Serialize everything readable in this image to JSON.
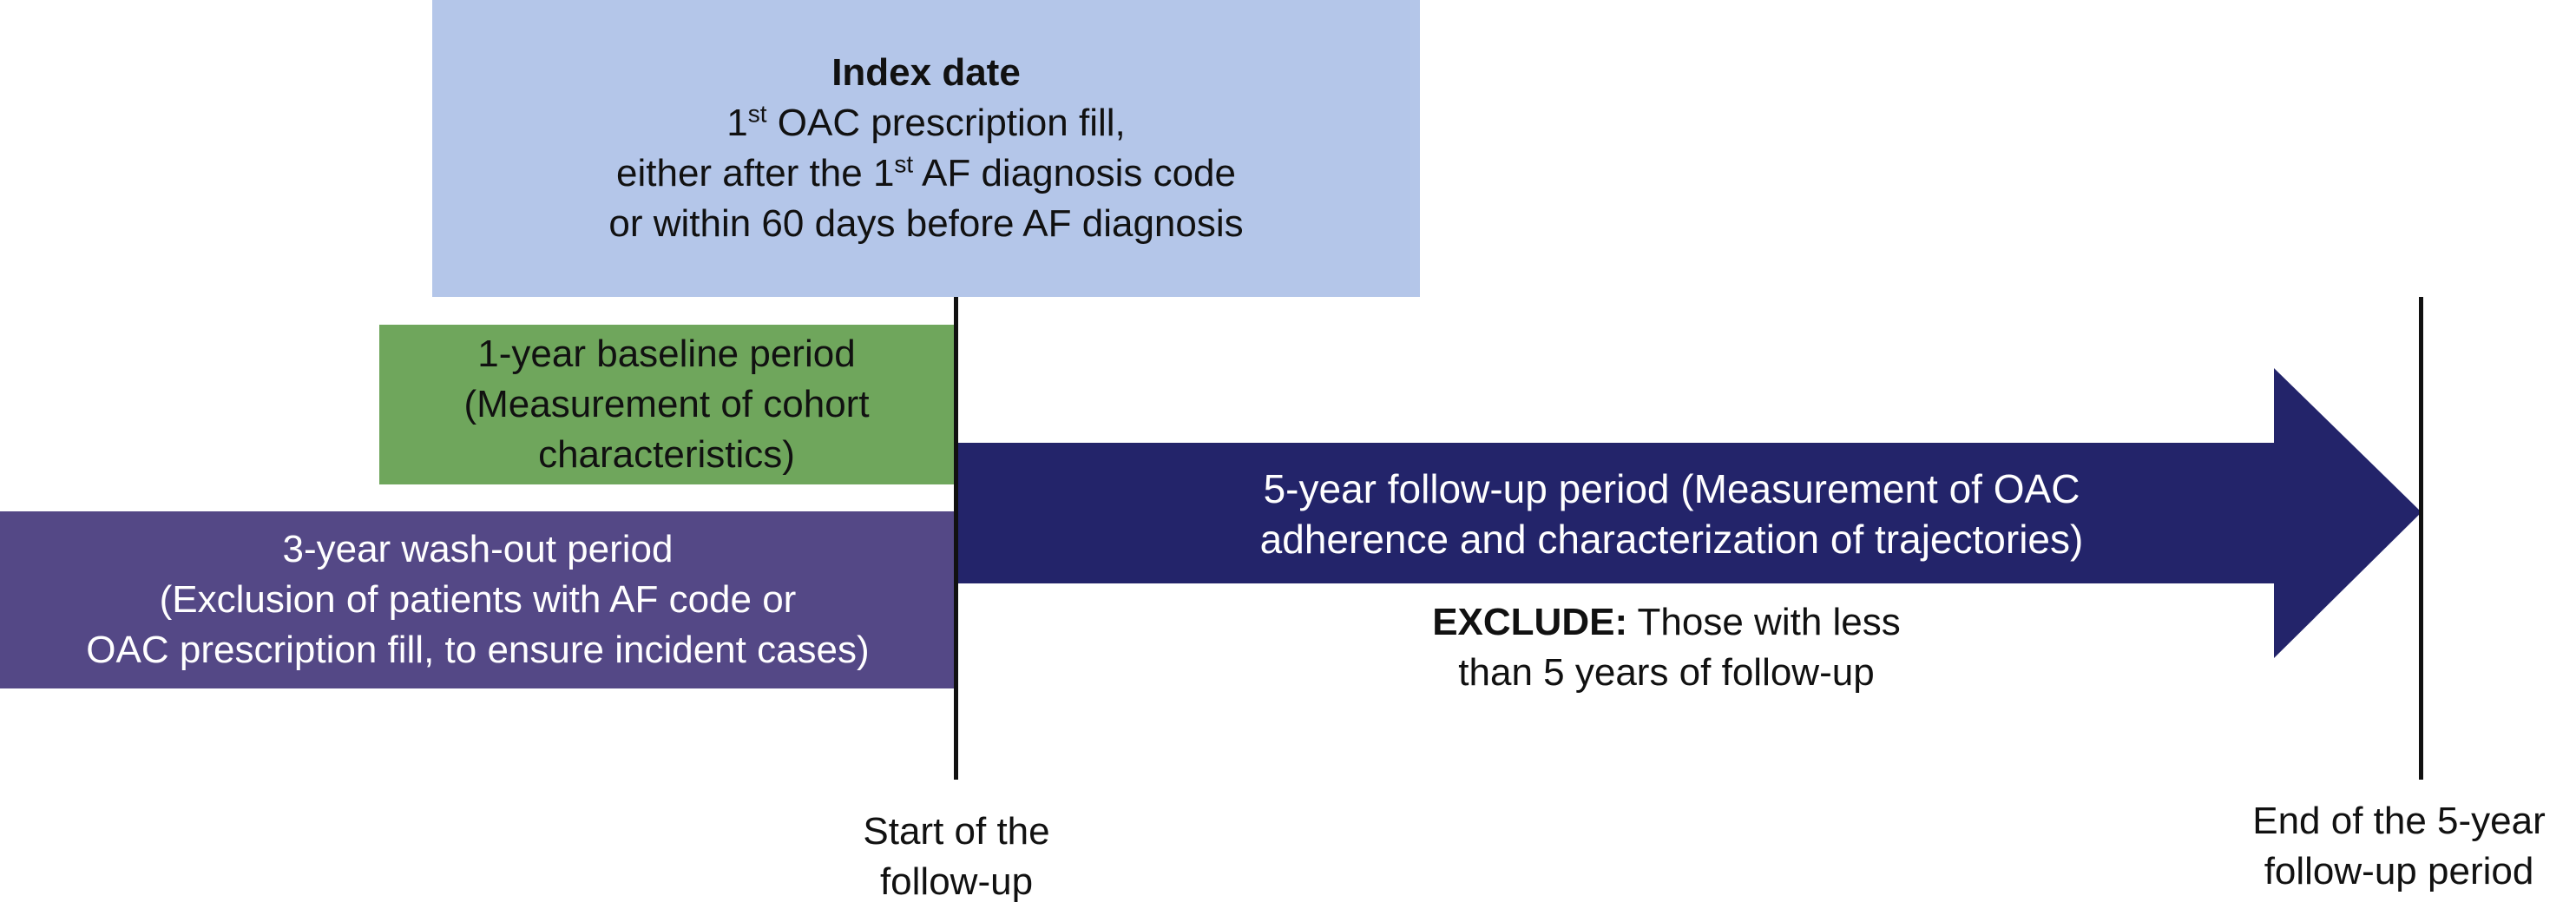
{
  "index_date": {
    "title": "Index date",
    "line1_pre": "1",
    "line1_sup": "st",
    "line1_post": " OAC prescription fill,",
    "line2_pre": "either after the 1",
    "line2_sup": "st",
    "line2_post": " AF diagnosis code",
    "line3": "or within 60 days before AF diagnosis",
    "color": "#b4c6e9"
  },
  "baseline_period": {
    "line1": "1-year baseline period",
    "line2": "(Measurement of cohort",
    "line3": "characteristics)",
    "color": "#6fa65c"
  },
  "washout_period": {
    "line1": "3-year wash-out period",
    "line2": "(Exclusion of patients with AF code or",
    "line3": "OAC prescription fill, to ensure incident cases)",
    "color": "#544886"
  },
  "followup_period": {
    "line1": "5-year follow-up period (Measurement of OAC",
    "line2": "adherence and characterization of trajectories)",
    "color": "#23246a"
  },
  "exclude": {
    "label": "EXCLUDE:",
    "text_line1": " Those with less",
    "text_line2": "than 5 years of follow-up"
  },
  "start_marker": {
    "line1": "Start of the",
    "line2": "follow-up"
  },
  "end_marker": {
    "line1": "End of the 5-year",
    "line2": "follow-up period"
  }
}
